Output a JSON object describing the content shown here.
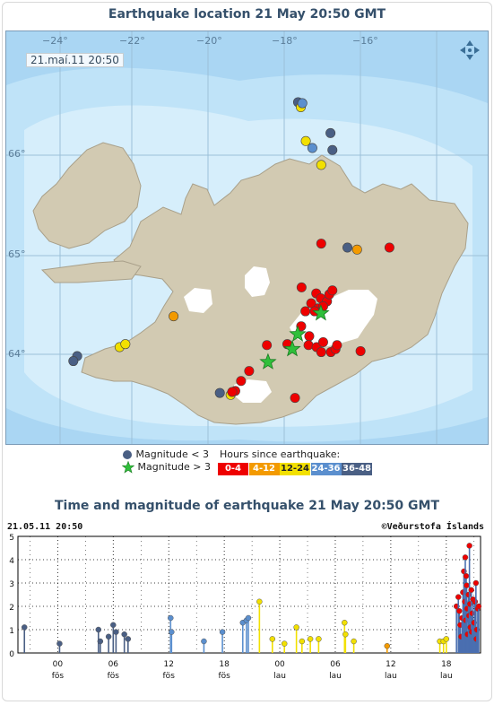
{
  "map_title": "Earthquake location   21 May 20:50 GMT",
  "map_stamp": "21.maí.11  20:50",
  "lon_labels": [
    "−24°",
    "−22°",
    "−20°",
    "−18°",
    "−16°"
  ],
  "lat_labels": [
    "66°",
    "65°",
    "64°"
  ],
  "legend": {
    "small_label": "Magnitude < 3",
    "large_label": "Magnitude > 3",
    "hours_title": "Hours since earthquake:",
    "hours": [
      {
        "label": "0-4",
        "color": "#ee0000",
        "text": "#ffffff"
      },
      {
        "label": "4-12",
        "color": "#f39a00",
        "text": "#ffffff"
      },
      {
        "label": "12-24",
        "color": "#f2e000",
        "text": "#222222"
      },
      {
        "label": "24-36",
        "color": "#5b8fce",
        "text": "#ffffff"
      },
      {
        "label": "36-48",
        "color": "#4a5f84",
        "text": "#ffffff"
      }
    ]
  },
  "map_events": [
    {
      "lon": -17.57,
      "lat": 66.55,
      "cls": "36-48",
      "star": false
    },
    {
      "lon": -17.5,
      "lat": 66.5,
      "cls": "12-24",
      "star": false
    },
    {
      "lon": -17.46,
      "lat": 66.54,
      "cls": "24-36",
      "star": false
    },
    {
      "lon": -17.37,
      "lat": 66.16,
      "cls": "12-24",
      "star": false
    },
    {
      "lon": -17.2,
      "lat": 66.09,
      "cls": "24-36",
      "star": false
    },
    {
      "lon": -16.73,
      "lat": 66.24,
      "cls": "36-48",
      "star": false
    },
    {
      "lon": -16.68,
      "lat": 66.07,
      "cls": "36-48",
      "star": false
    },
    {
      "lon": -16.97,
      "lat": 65.92,
      "cls": "12-24",
      "star": false
    },
    {
      "lon": -16.97,
      "lat": 65.13,
      "cls": "0-4",
      "star": false
    },
    {
      "lon": -16.29,
      "lat": 65.09,
      "cls": "36-48",
      "star": false
    },
    {
      "lon": -16.04,
      "lat": 65.07,
      "cls": "4-12",
      "star": false
    },
    {
      "lon": -15.2,
      "lat": 65.09,
      "cls": "0-4",
      "star": false
    },
    {
      "lon": -20.8,
      "lat": 64.4,
      "cls": "4-12",
      "star": false
    },
    {
      "lon": -23.3,
      "lat": 64.0,
      "cls": "36-48",
      "star": false
    },
    {
      "lon": -23.4,
      "lat": 63.95,
      "cls": "36-48",
      "star": false
    },
    {
      "lon": -22.2,
      "lat": 64.09,
      "cls": "12-24",
      "star": false
    },
    {
      "lon": -22.05,
      "lat": 64.12,
      "cls": "12-24",
      "star": false
    },
    {
      "lon": -17.48,
      "lat": 64.69,
      "cls": "0-4",
      "star": false
    },
    {
      "lon": -17.1,
      "lat": 64.63,
      "cls": "0-4",
      "star": false
    },
    {
      "lon": -17.23,
      "lat": 64.53,
      "cls": "0-4",
      "star": false
    },
    {
      "lon": -17.38,
      "lat": 64.45,
      "cls": "0-4",
      "star": false
    },
    {
      "lon": -17.05,
      "lat": 64.48,
      "cls": "0-4",
      "star": false
    },
    {
      "lon": -17.14,
      "lat": 64.45,
      "cls": "0-4",
      "star": false
    },
    {
      "lon": -16.98,
      "lat": 64.58,
      "cls": "0-4",
      "star": false
    },
    {
      "lon": -16.82,
      "lat": 64.55,
      "cls": "0-4",
      "star": false
    },
    {
      "lon": -16.76,
      "lat": 64.62,
      "cls": "0-4",
      "star": false
    },
    {
      "lon": -16.68,
      "lat": 64.66,
      "cls": "0-4",
      "star": false
    },
    {
      "lon": -16.92,
      "lat": 64.5,
      "cls": "0-4",
      "star": false
    },
    {
      "lon": -16.98,
      "lat": 64.43,
      "cls": "0-4",
      "star": true
    },
    {
      "lon": -17.49,
      "lat": 64.3,
      "cls": "0-4",
      "star": false
    },
    {
      "lon": -17.85,
      "lat": 64.12,
      "cls": "0-4",
      "star": false
    },
    {
      "lon": -17.28,
      "lat": 64.2,
      "cls": "0-4",
      "star": false
    },
    {
      "lon": -17.58,
      "lat": 64.22,
      "cls": "0-4",
      "star": true
    },
    {
      "lon": -17.72,
      "lat": 64.07,
      "cls": "0-4",
      "star": true
    },
    {
      "lon": -17.3,
      "lat": 64.11,
      "cls": "0-4",
      "star": false
    },
    {
      "lon": -17.09,
      "lat": 64.09,
      "cls": "0-4",
      "star": false
    },
    {
      "lon": -16.97,
      "lat": 64.04,
      "cls": "0-4",
      "star": false
    },
    {
      "lon": -16.72,
      "lat": 64.04,
      "cls": "0-4",
      "star": false
    },
    {
      "lon": -16.6,
      "lat": 64.07,
      "cls": "0-4",
      "star": false
    },
    {
      "lon": -16.92,
      "lat": 64.14,
      "cls": "0-4",
      "star": false
    },
    {
      "lon": -16.56,
      "lat": 64.11,
      "cls": "0-4",
      "star": false
    },
    {
      "lon": -18.38,
      "lat": 64.11,
      "cls": "0-4",
      "star": false
    },
    {
      "lon": -18.35,
      "lat": 63.94,
      "cls": "0-4",
      "star": true
    },
    {
      "lon": -18.84,
      "lat": 63.85,
      "cls": "0-4",
      "star": false
    },
    {
      "lon": -19.05,
      "lat": 63.75,
      "cls": "0-4",
      "star": false
    },
    {
      "lon": -19.2,
      "lat": 63.65,
      "cls": "0-4",
      "star": false
    },
    {
      "lon": -19.32,
      "lat": 63.61,
      "cls": "12-24",
      "star": false
    },
    {
      "lon": -19.6,
      "lat": 63.63,
      "cls": "36-48",
      "star": false
    },
    {
      "lon": -19.28,
      "lat": 63.64,
      "cls": "0-4",
      "star": false
    },
    {
      "lon": -17.65,
      "lat": 63.58,
      "cls": "0-4",
      "star": false
    },
    {
      "lon": -15.95,
      "lat": 64.05,
      "cls": "0-4",
      "star": false
    }
  ],
  "ts": {
    "title": "Time and magnitude of earthquake   21 May 20:50 GMT",
    "date_stamp": "21.05.11 20:50",
    "credit": "©Veðurstofa Íslands",
    "y_ticks": [
      "0",
      "1",
      "2",
      "3",
      "4",
      "5"
    ],
    "x_ticks": [
      {
        "hour": 0,
        "label": "00",
        "day": "fös"
      },
      {
        "hour": 6,
        "label": "06",
        "day": "fös"
      },
      {
        "hour": 12,
        "label": "12",
        "day": "fös"
      },
      {
        "hour": 18,
        "label": "18",
        "day": "fös"
      },
      {
        "hour": 24,
        "label": "00",
        "day": "lau"
      },
      {
        "hour": 30,
        "label": "06",
        "day": "lau"
      },
      {
        "hour": 36,
        "label": "12",
        "day": "lau"
      },
      {
        "hour": 42,
        "label": "18",
        "day": "lau"
      }
    ]
  },
  "chart_data": {
    "type": "scatter",
    "x_unit": "hours since 00:00 Friday 20 May 2011",
    "xlim": [
      -4.3,
      45.7
    ],
    "ylim": [
      0,
      5
    ],
    "series_by_color": true,
    "points": [
      [
        -3.6,
        1.1,
        "36-48"
      ],
      [
        0.2,
        0.4,
        "36-48"
      ],
      [
        4.4,
        1.0,
        "36-48"
      ],
      [
        4.6,
        0.5,
        "36-48"
      ],
      [
        5.5,
        0.7,
        "36-48"
      ],
      [
        6.0,
        1.2,
        "36-48"
      ],
      [
        6.3,
        0.9,
        "36-48"
      ],
      [
        7.2,
        0.8,
        "36-48"
      ],
      [
        7.6,
        0.6,
        "36-48"
      ],
      [
        12.2,
        1.5,
        "24-36"
      ],
      [
        12.3,
        0.9,
        "24-36"
      ],
      [
        15.8,
        0.5,
        "24-36"
      ],
      [
        17.8,
        0.9,
        "24-36"
      ],
      [
        20.0,
        1.3,
        "24-36"
      ],
      [
        20.4,
        1.4,
        "24-36"
      ],
      [
        20.6,
        1.5,
        "24-36"
      ],
      [
        21.8,
        2.2,
        "12-24"
      ],
      [
        23.2,
        0.6,
        "12-24"
      ],
      [
        24.5,
        0.4,
        "12-24"
      ],
      [
        25.8,
        1.1,
        "12-24"
      ],
      [
        26.4,
        0.5,
        "12-24"
      ],
      [
        27.3,
        0.6,
        "12-24"
      ],
      [
        28.2,
        0.6,
        "12-24"
      ],
      [
        31.0,
        1.3,
        "12-24"
      ],
      [
        31.1,
        0.8,
        "12-24"
      ],
      [
        32.0,
        0.5,
        "12-24"
      ],
      [
        35.6,
        0.3,
        "4-12"
      ],
      [
        41.3,
        0.5,
        "12-24"
      ],
      [
        41.7,
        0.5,
        "12-24"
      ],
      [
        42.0,
        0.6,
        "12-24"
      ],
      [
        43.1,
        2.0,
        "0-4"
      ],
      [
        43.3,
        2.4,
        "0-4"
      ],
      [
        43.4,
        1.8,
        "0-4"
      ],
      [
        43.5,
        1.2,
        "0-4"
      ],
      [
        43.6,
        0.7,
        "0-4"
      ],
      [
        43.7,
        1.5,
        "0-4"
      ],
      [
        43.8,
        2.6,
        "0-4"
      ],
      [
        43.9,
        3.5,
        "0-4"
      ],
      [
        44.0,
        2.2,
        "0-4"
      ],
      [
        44.05,
        4.1,
        "0-4"
      ],
      [
        44.1,
        1.4,
        "0-4"
      ],
      [
        44.15,
        3.3,
        "0-4"
      ],
      [
        44.2,
        2.9,
        "0-4"
      ],
      [
        44.25,
        1.9,
        "0-4"
      ],
      [
        44.3,
        0.8,
        "0-4"
      ],
      [
        44.4,
        2.5,
        "0-4"
      ],
      [
        44.45,
        1.6,
        "0-4"
      ],
      [
        44.5,
        4.6,
        "0-4"
      ],
      [
        44.55,
        2.1,
        "0-4"
      ],
      [
        44.6,
        1.1,
        "0-4"
      ],
      [
        44.7,
        2.7,
        "0-4"
      ],
      [
        44.75,
        0.9,
        "0-4"
      ],
      [
        44.8,
        1.7,
        "0-4"
      ],
      [
        44.9,
        2.3,
        "0-4"
      ],
      [
        45.0,
        1.3,
        "0-4"
      ],
      [
        45.1,
        2.2,
        "0-4"
      ],
      [
        45.2,
        3.0,
        "0-4"
      ],
      [
        45.25,
        0.6,
        "0-4"
      ],
      [
        45.3,
        1.0,
        "0-4"
      ],
      [
        45.4,
        1.9,
        "0-4"
      ],
      [
        45.5,
        2.0,
        "0-4"
      ]
    ]
  }
}
